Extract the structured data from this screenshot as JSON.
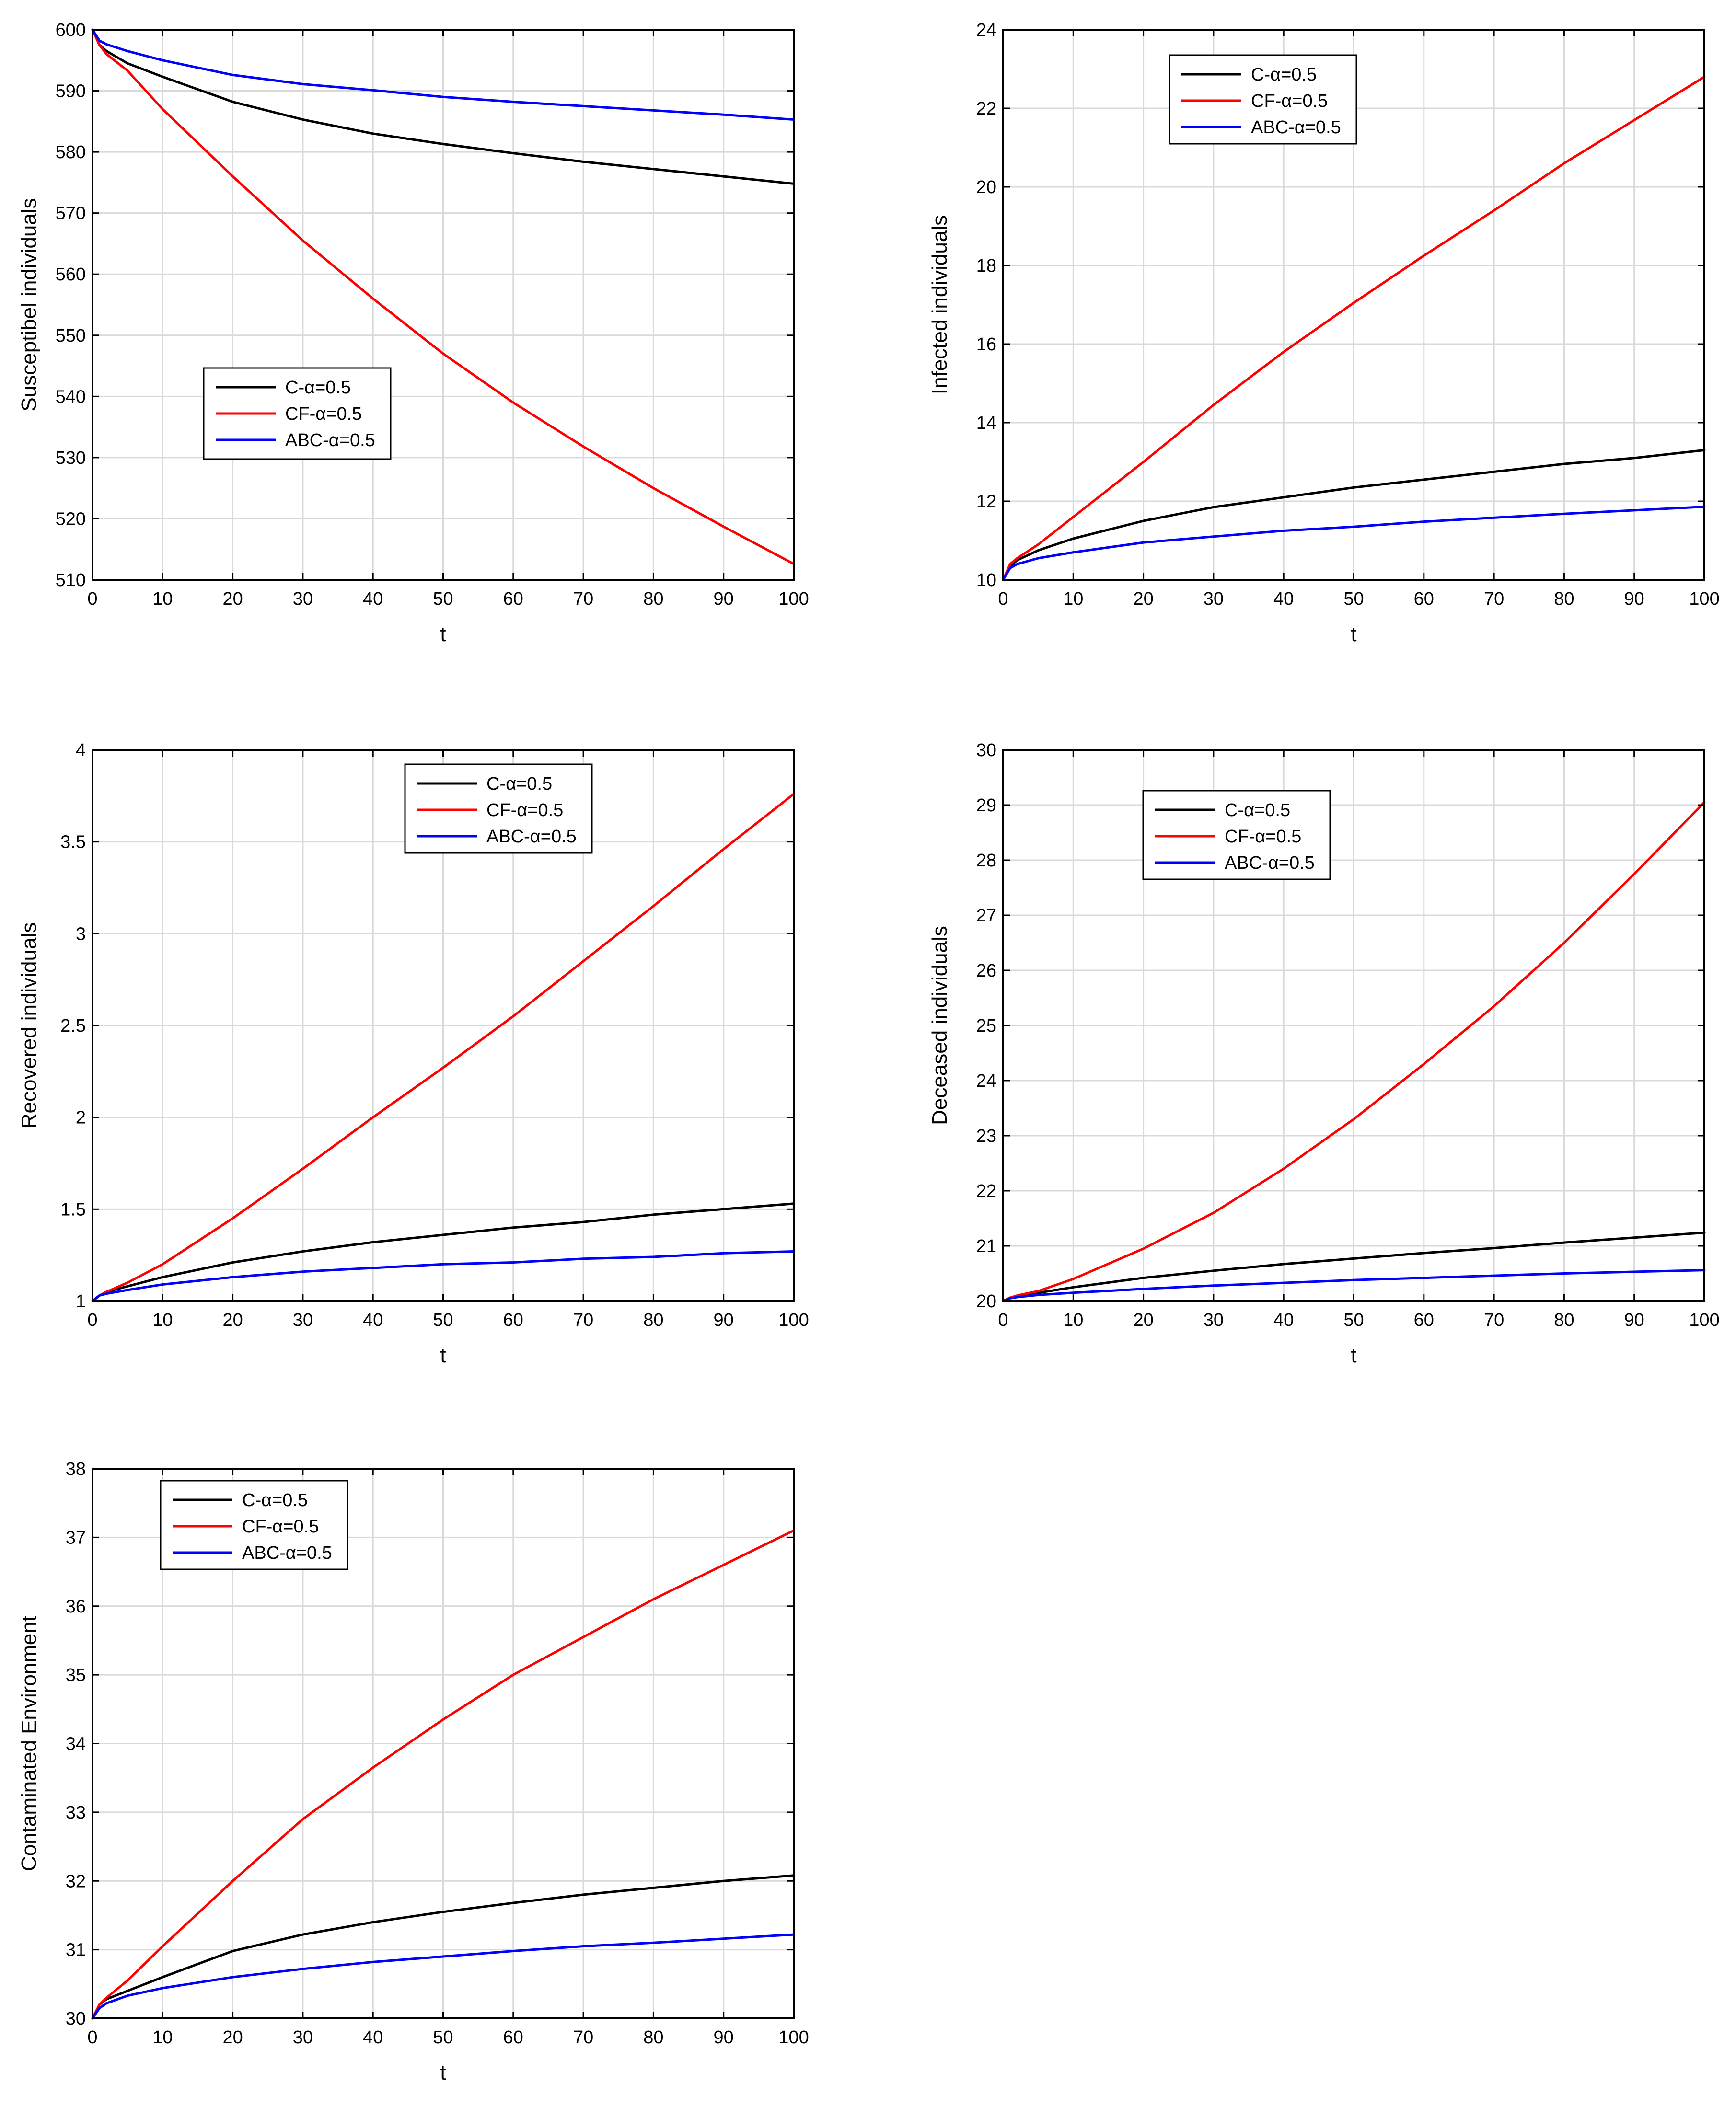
{
  "figure": {
    "colors": {
      "C": "#000000",
      "CF": "#ff0000",
      "ABC": "#0000ff"
    }
  },
  "chart_data": [
    {
      "type": "line",
      "id": "susceptible",
      "title": "",
      "xlabel": "t",
      "ylabel": "Susceptibel individuals",
      "xlim": [
        0,
        100
      ],
      "ylim": [
        510,
        600
      ],
      "xticks": [
        0,
        10,
        20,
        30,
        40,
        50,
        60,
        70,
        80,
        90,
        100
      ],
      "yticks": [
        510,
        520,
        530,
        540,
        550,
        560,
        570,
        580,
        590,
        600
      ],
      "grid": true,
      "legend_position": "lower-left",
      "x": [
        0,
        1,
        2,
        5,
        10,
        20,
        30,
        40,
        50,
        60,
        70,
        80,
        90,
        100
      ],
      "series": [
        {
          "name": "C-α=0.5",
          "color": "#000000",
          "values": [
            600,
            597.5,
            596.5,
            594.5,
            592.3,
            588.2,
            585.3,
            583.0,
            581.3,
            579.8,
            578.4,
            577.2,
            576.0,
            574.8
          ]
        },
        {
          "name": "CF-α=0.5",
          "color": "#ff0000",
          "values": [
            600,
            597.5,
            596.0,
            593.3,
            587.0,
            576.0,
            565.5,
            556.0,
            547.0,
            539.0,
            531.8,
            525.0,
            518.7,
            512.6
          ]
        },
        {
          "name": "ABC-α=0.5",
          "color": "#0000ff",
          "values": [
            600,
            598.2,
            597.6,
            596.5,
            595.0,
            592.6,
            591.1,
            590.1,
            589.0,
            588.2,
            587.5,
            586.8,
            586.1,
            585.3
          ]
        }
      ]
    },
    {
      "type": "line",
      "id": "infected",
      "title": "",
      "xlabel": "t",
      "ylabel": "Infected individuals",
      "xlim": [
        0,
        100
      ],
      "ylim": [
        10,
        24
      ],
      "xticks": [
        0,
        10,
        20,
        30,
        40,
        50,
        60,
        70,
        80,
        90,
        100
      ],
      "yticks": [
        10,
        12,
        14,
        16,
        18,
        20,
        22,
        24
      ],
      "grid": true,
      "legend_position": "top-center",
      "x": [
        0,
        1,
        2,
        5,
        10,
        20,
        30,
        40,
        50,
        60,
        70,
        80,
        90,
        100
      ],
      "series": [
        {
          "name": "C-α=0.5",
          "color": "#000000",
          "values": [
            10,
            10.35,
            10.5,
            10.75,
            11.05,
            11.5,
            11.85,
            12.1,
            12.35,
            12.55,
            12.75,
            12.95,
            13.1,
            13.3
          ]
        },
        {
          "name": "CF-α=0.5",
          "color": "#ff0000",
          "values": [
            10,
            10.4,
            10.55,
            10.9,
            11.6,
            13.0,
            14.45,
            15.8,
            17.05,
            18.25,
            19.4,
            20.6,
            21.7,
            22.8
          ]
        },
        {
          "name": "ABC-α=0.5",
          "color": "#0000ff",
          "values": [
            10,
            10.3,
            10.4,
            10.55,
            10.7,
            10.95,
            11.1,
            11.25,
            11.35,
            11.48,
            11.58,
            11.68,
            11.77,
            11.86
          ]
        }
      ]
    },
    {
      "type": "line",
      "id": "recovered",
      "title": "",
      "xlabel": "t",
      "ylabel": "Recovered individuals",
      "xlim": [
        0,
        100
      ],
      "ylim": [
        1,
        4
      ],
      "xticks": [
        0,
        10,
        20,
        30,
        40,
        50,
        60,
        70,
        80,
        90,
        100
      ],
      "yticks": [
        1,
        1.5,
        2,
        2.5,
        3,
        3.5,
        4
      ],
      "grid": true,
      "legend_position": "top-center",
      "x": [
        0,
        1,
        2,
        5,
        10,
        20,
        30,
        40,
        50,
        60,
        70,
        80,
        90,
        100
      ],
      "series": [
        {
          "name": "C-α=0.5",
          "color": "#000000",
          "values": [
            1,
            1.03,
            1.05,
            1.08,
            1.13,
            1.21,
            1.27,
            1.32,
            1.36,
            1.4,
            1.43,
            1.47,
            1.5,
            1.53
          ]
        },
        {
          "name": "CF-α=0.5",
          "color": "#ff0000",
          "values": [
            1,
            1.03,
            1.05,
            1.1,
            1.2,
            1.45,
            1.72,
            2.0,
            2.27,
            2.55,
            2.85,
            3.15,
            3.46,
            3.76
          ]
        },
        {
          "name": "ABC-α=0.5",
          "color": "#0000ff",
          "values": [
            1,
            1.03,
            1.04,
            1.06,
            1.09,
            1.13,
            1.16,
            1.18,
            1.2,
            1.21,
            1.23,
            1.24,
            1.26,
            1.27
          ]
        }
      ]
    },
    {
      "type": "line",
      "id": "deceased",
      "title": "",
      "xlabel": "t",
      "ylabel": "Deceased individuals",
      "xlim": [
        0,
        100
      ],
      "ylim": [
        20,
        30
      ],
      "xticks": [
        0,
        10,
        20,
        30,
        40,
        50,
        60,
        70,
        80,
        90,
        100
      ],
      "yticks": [
        20,
        21,
        22,
        23,
        24,
        25,
        26,
        27,
        28,
        29,
        30
      ],
      "grid": true,
      "legend_position": "top-left",
      "x": [
        0,
        1,
        2,
        5,
        10,
        20,
        30,
        40,
        50,
        60,
        70,
        80,
        90,
        100
      ],
      "series": [
        {
          "name": "C-α=0.5",
          "color": "#000000",
          "values": [
            20,
            20.06,
            20.09,
            20.15,
            20.25,
            20.42,
            20.55,
            20.67,
            20.77,
            20.87,
            20.96,
            21.06,
            21.15,
            21.24
          ]
        },
        {
          "name": "CF-α=0.5",
          "color": "#ff0000",
          "values": [
            20,
            20.06,
            20.1,
            20.18,
            20.4,
            20.95,
            21.6,
            22.4,
            23.3,
            24.3,
            25.35,
            26.5,
            27.75,
            29.05
          ]
        },
        {
          "name": "ABC-α=0.5",
          "color": "#0000ff",
          "values": [
            20,
            20.05,
            20.07,
            20.11,
            20.15,
            20.22,
            20.28,
            20.33,
            20.38,
            20.42,
            20.46,
            20.5,
            20.53,
            20.56
          ]
        }
      ]
    },
    {
      "type": "line",
      "id": "contaminated",
      "title": "",
      "xlabel": "t",
      "ylabel": "Contaminated Environment",
      "xlim": [
        0,
        100
      ],
      "ylim": [
        30,
        38
      ],
      "xticks": [
        0,
        10,
        20,
        30,
        40,
        50,
        60,
        70,
        80,
        90,
        100
      ],
      "yticks": [
        30,
        31,
        32,
        33,
        34,
        35,
        36,
        37,
        38
      ],
      "grid": true,
      "legend_position": "top-left",
      "x": [
        0,
        1,
        2,
        5,
        10,
        20,
        30,
        40,
        50,
        60,
        70,
        80,
        90,
        100
      ],
      "series": [
        {
          "name": "C-α=0.5",
          "color": "#000000",
          "values": [
            30,
            30.2,
            30.28,
            30.4,
            30.6,
            30.98,
            31.22,
            31.4,
            31.55,
            31.68,
            31.8,
            31.9,
            32.0,
            32.08
          ]
        },
        {
          "name": "CF-α=0.5",
          "color": "#ff0000",
          "values": [
            30,
            30.2,
            30.3,
            30.55,
            31.05,
            32.0,
            32.9,
            33.65,
            34.35,
            35.0,
            35.55,
            36.1,
            36.6,
            37.1
          ]
        },
        {
          "name": "ABC-α=0.5",
          "color": "#0000ff",
          "values": [
            30,
            30.15,
            30.22,
            30.33,
            30.44,
            30.6,
            30.72,
            30.82,
            30.9,
            30.98,
            31.05,
            31.1,
            31.16,
            31.22
          ]
        }
      ]
    }
  ]
}
